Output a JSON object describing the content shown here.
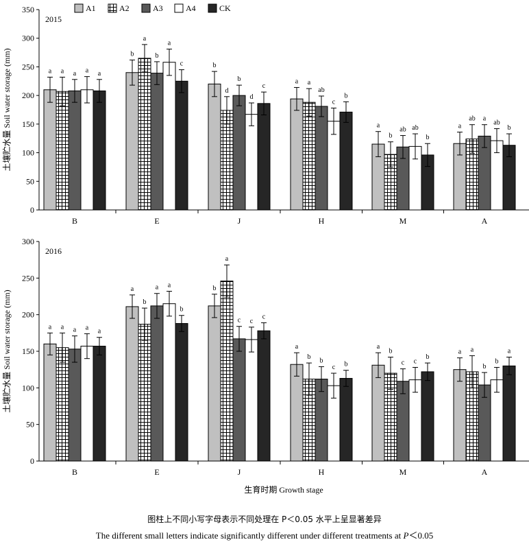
{
  "chart_data": [
    {
      "type": "bar",
      "title": "2015",
      "legend": [
        "A1",
        "A2",
        "A3",
        "A4",
        "CK"
      ],
      "ylabel": "土壤贮水量 Soil water storage (mm)",
      "xlabel": "",
      "ylim": [
        0,
        350
      ],
      "yticks": [
        0,
        50,
        100,
        150,
        200,
        250,
        300,
        350
      ],
      "categories": [
        "B",
        "E",
        "J",
        "H",
        "M",
        "A"
      ],
      "series": [
        {
          "name": "A1",
          "values": [
            210,
            240,
            220,
            194,
            115,
            116
          ],
          "errors": [
            22,
            22,
            22,
            20,
            22,
            20
          ],
          "letters": [
            "a",
            "b",
            "b",
            "a",
            "a",
            "a"
          ]
        },
        {
          "name": "A2",
          "values": [
            207,
            265,
            174,
            188,
            97,
            124
          ],
          "errors": [
            25,
            24,
            24,
            24,
            22,
            25
          ],
          "letters": [
            "a",
            "a",
            "d",
            "a",
            "b",
            "ab"
          ]
        },
        {
          "name": "A3",
          "values": [
            208,
            239,
            200,
            181,
            110,
            129
          ],
          "errors": [
            20,
            20,
            18,
            18,
            20,
            20
          ],
          "letters": [
            "a",
            "b",
            "b",
            "ab",
            "ab",
            "a"
          ]
        },
        {
          "name": "A4",
          "values": [
            210,
            258,
            167,
            155,
            111,
            121
          ],
          "errors": [
            23,
            23,
            20,
            23,
            22,
            21
          ],
          "letters": [
            "a",
            "a",
            "d",
            "c",
            "ab",
            "ab"
          ]
        },
        {
          "name": "CK",
          "values": [
            208,
            225,
            186,
            171,
            96,
            113
          ],
          "errors": [
            20,
            20,
            20,
            18,
            20,
            20
          ],
          "letters": [
            "a",
            "c",
            "c",
            "b",
            "b",
            "b"
          ]
        }
      ]
    },
    {
      "type": "bar",
      "title": "2016",
      "ylabel": "土壤贮水量 Soil water storage (mm)",
      "xlabel": "生育时期 Growth stage",
      "ylim": [
        0,
        300
      ],
      "yticks": [
        0,
        50,
        100,
        150,
        200,
        250,
        300
      ],
      "categories": [
        "B",
        "E",
        "J",
        "H",
        "M",
        "A"
      ],
      "series": [
        {
          "name": "A1",
          "values": [
            160,
            211,
            212,
            132,
            131,
            125
          ],
          "errors": [
            15,
            16,
            16,
            16,
            17,
            16
          ],
          "letters": [
            "a",
            "a",
            "b",
            "a",
            "a",
            "a"
          ]
        },
        {
          "name": "A2",
          "values": [
            155,
            187,
            246,
            112,
            120,
            122
          ],
          "errors": [
            20,
            22,
            22,
            22,
            22,
            22
          ],
          "letters": [
            "a",
            "b",
            "a",
            "b",
            "b",
            "a"
          ]
        },
        {
          "name": "A3",
          "values": [
            153,
            212,
            167,
            112,
            109,
            104
          ],
          "errors": [
            18,
            17,
            17,
            17,
            17,
            17
          ],
          "letters": [
            "a",
            "a",
            "c",
            "b",
            "c",
            "b"
          ]
        },
        {
          "name": "A4",
          "values": [
            157,
            215,
            166,
            103,
            111,
            111
          ],
          "errors": [
            17,
            17,
            17,
            17,
            17,
            17
          ],
          "letters": [
            "a",
            "a",
            "c",
            "c",
            "c",
            "b"
          ]
        },
        {
          "name": "CK",
          "values": [
            157,
            188,
            178,
            113,
            122,
            130
          ],
          "errors": [
            12,
            11,
            11,
            11,
            12,
            12
          ],
          "letters": [
            "a",
            "b",
            "c",
            "b",
            "b",
            "a"
          ]
        }
      ]
    }
  ],
  "style": {
    "series_fill": {
      "A1": "#c0c0c0",
      "A2": "#ffffff",
      "A3": "#595959",
      "A4": "#ffffff",
      "CK": "#262626"
    },
    "series_pattern": {
      "A2": "grid"
    },
    "axis_color": "#000000"
  },
  "caption": {
    "zh": "图柱上不同小写字母表示不同处理在 P＜0.05 水平上呈显著差异",
    "en_prefix": "The different small letters indicate significantly different under different treatments at ",
    "en_p": "P",
    "en_suffix": "＜0.05"
  }
}
